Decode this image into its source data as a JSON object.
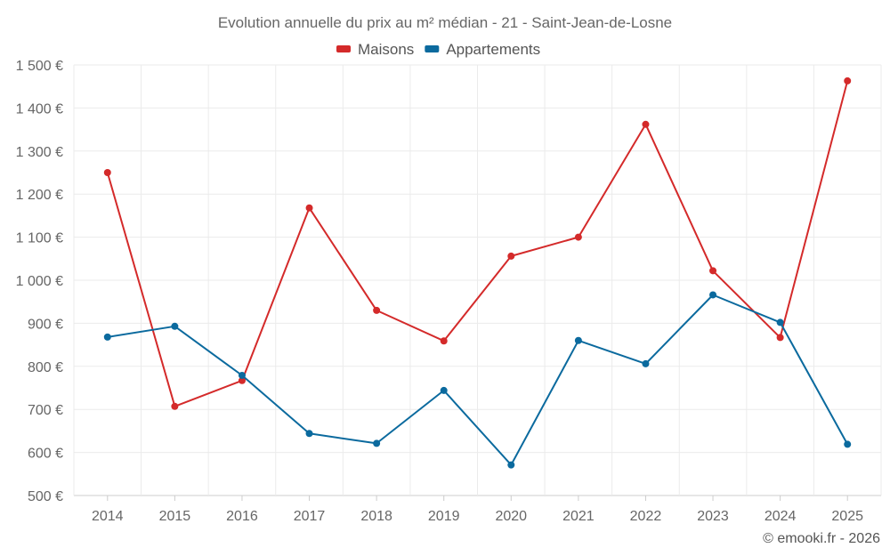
{
  "chart_data": {
    "type": "line",
    "title": "Evolution annuelle du prix au m² médian - 21 - Saint-Jean-de-Losne",
    "xlabel": "",
    "ylabel": "",
    "categories": [
      "2014",
      "2015",
      "2016",
      "2017",
      "2018",
      "2019",
      "2020",
      "2021",
      "2022",
      "2023",
      "2024",
      "2025"
    ],
    "series": [
      {
        "name": "Maisons",
        "color": "#d42a2a",
        "values": [
          1250,
          707,
          767,
          1168,
          930,
          859,
          1056,
          1100,
          1362,
          1022,
          867,
          1463
        ]
      },
      {
        "name": "Appartements",
        "color": "#0b6a9e",
        "values": [
          868,
          893,
          779,
          644,
          621,
          744,
          571,
          860,
          806,
          966,
          902,
          619
        ]
      }
    ],
    "ylim": [
      500,
      1500
    ],
    "yticks": [
      {
        "value": 500,
        "label": "500 €"
      },
      {
        "value": 600,
        "label": "600 €"
      },
      {
        "value": 700,
        "label": "700 €"
      },
      {
        "value": 800,
        "label": "800 €"
      },
      {
        "value": 900,
        "label": "900 €"
      },
      {
        "value": 1000,
        "label": "1 000 €"
      },
      {
        "value": 1100,
        "label": "1 100 €"
      },
      {
        "value": 1200,
        "label": "1 200 €"
      },
      {
        "value": 1300,
        "label": "1 300 €"
      },
      {
        "value": 1400,
        "label": "1 400 €"
      },
      {
        "value": 1500,
        "label": "1 500 €"
      }
    ],
    "grid": true,
    "legend_position": "top-center"
  },
  "credit": "© emooki.fr - 2026"
}
